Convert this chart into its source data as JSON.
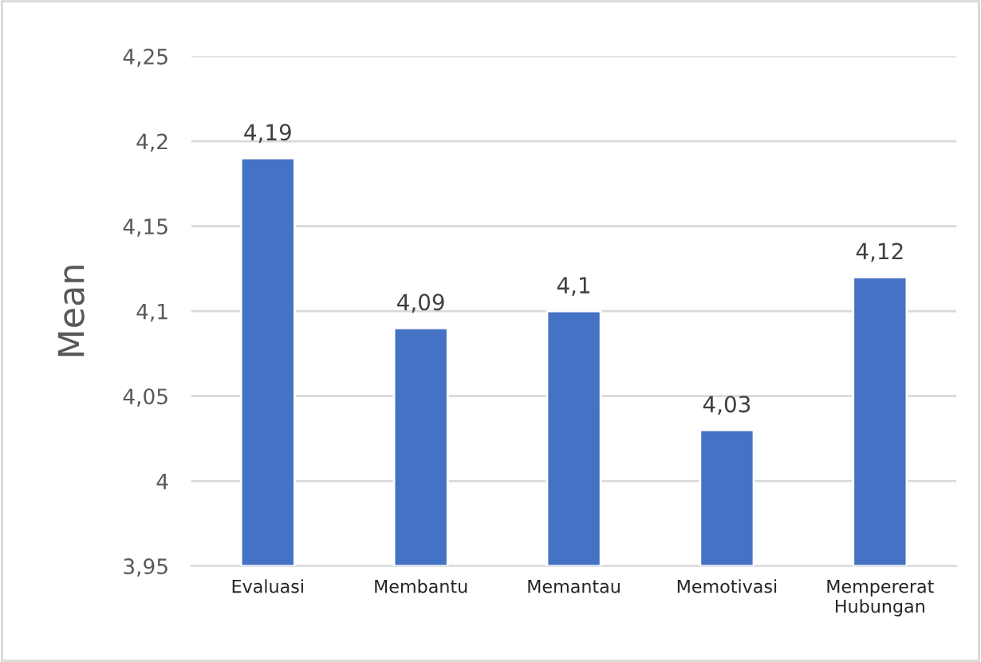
{
  "chart_data": {
    "type": "bar",
    "ylabel": "Mean",
    "categories": [
      "Evaluasi",
      "Membantu",
      "Memantau",
      "Memotivasi",
      "Mempererat Hubungan"
    ],
    "values": [
      4.19,
      4.09,
      4.1,
      4.03,
      4.12
    ],
    "value_labels": [
      "4,19",
      "4,09",
      "4,1",
      "4,03",
      "4,12"
    ],
    "color": "#4472c4",
    "ylim": [
      3.95,
      4.25
    ],
    "yticks": [
      {
        "value": 3.95,
        "label": "3,95"
      },
      {
        "value": 4.0,
        "label": "4"
      },
      {
        "value": 4.05,
        "label": "4,05"
      },
      {
        "value": 4.1,
        "label": "4,1"
      },
      {
        "value": 4.15,
        "label": "4,15"
      },
      {
        "value": 4.2,
        "label": "4,2"
      },
      {
        "value": 4.25,
        "label": "4,25"
      }
    ],
    "grid": "y",
    "legend": false
  }
}
